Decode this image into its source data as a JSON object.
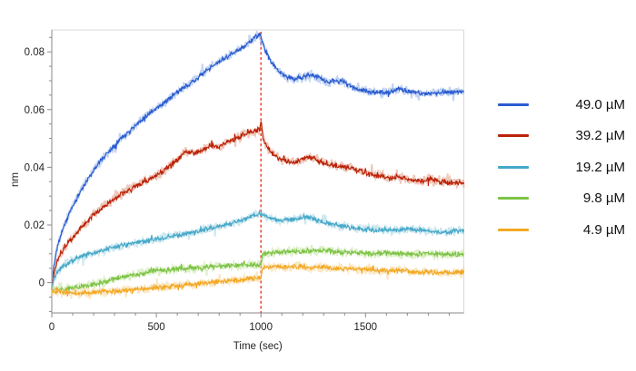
{
  "chart_data": {
    "type": "line",
    "title": "",
    "xlabel": "Time (sec)",
    "ylabel": "nm",
    "x_range": [
      0,
      1970
    ],
    "y_range": [
      -0.0105,
      0.0876
    ],
    "x_major_ticks": [
      0,
      500,
      1000,
      1500
    ],
    "x_tick_labels": [
      "0",
      "500",
      "1000",
      "1500"
    ],
    "x_minor_step": 100,
    "y_major_ticks": [
      0,
      0.02,
      0.04,
      0.06,
      0.08
    ],
    "y_tick_labels": [
      "0",
      "0.02",
      "0.04",
      "0.06",
      "0.08"
    ],
    "y_minor_step": 0.005,
    "grid": "off",
    "legend_position": "right-outside",
    "event_marker": {
      "x": 1000,
      "style": "dashed",
      "color": "#ee3524"
    },
    "style": {
      "axis_color": "#8a8a8a",
      "frame_color": "#d9d9d9",
      "text_color": "#1f1f1f"
    },
    "series": [
      {
        "label": "49.0 µM",
        "color": "#2a5cd1",
        "light": "#8fb0e8",
        "noise": 0.001,
        "seed": 11,
        "points": [
          [
            0,
            -0.002
          ],
          [
            10,
            0.006
          ],
          [
            25,
            0.012
          ],
          [
            50,
            0.018
          ],
          [
            90,
            0.025
          ],
          [
            140,
            0.032
          ],
          [
            200,
            0.039
          ],
          [
            260,
            0.0445
          ],
          [
            330,
            0.05
          ],
          [
            400,
            0.0545
          ],
          [
            470,
            0.059
          ],
          [
            540,
            0.0625
          ],
          [
            610,
            0.0665
          ],
          [
            680,
            0.07
          ],
          [
            750,
            0.074
          ],
          [
            820,
            0.0775
          ],
          [
            880,
            0.08
          ],
          [
            930,
            0.0825
          ],
          [
            970,
            0.085
          ],
          [
            995,
            0.086
          ],
          [
            1000,
            0.0855
          ],
          [
            1010,
            0.0825
          ],
          [
            1030,
            0.079
          ],
          [
            1060,
            0.0755
          ],
          [
            1090,
            0.073
          ],
          [
            1120,
            0.0715
          ],
          [
            1160,
            0.0705
          ],
          [
            1200,
            0.0712
          ],
          [
            1240,
            0.072
          ],
          [
            1280,
            0.071
          ],
          [
            1320,
            0.0695
          ],
          [
            1360,
            0.07
          ],
          [
            1400,
            0.0695
          ],
          [
            1440,
            0.0675
          ],
          [
            1480,
            0.067
          ],
          [
            1530,
            0.066
          ],
          [
            1600,
            0.0658
          ],
          [
            1660,
            0.0672
          ],
          [
            1720,
            0.066
          ],
          [
            1800,
            0.0655
          ],
          [
            1900,
            0.0662
          ],
          [
            1970,
            0.066
          ]
        ]
      },
      {
        "label": "39.2 µM",
        "color": "#bb2208",
        "light": "#e09a82",
        "noise": 0.0011,
        "seed": 23,
        "points": [
          [
            0,
            -0.002
          ],
          [
            10,
            0.003
          ],
          [
            25,
            0.007
          ],
          [
            50,
            0.011
          ],
          [
            90,
            0.015
          ],
          [
            140,
            0.019
          ],
          [
            200,
            0.0235
          ],
          [
            260,
            0.027
          ],
          [
            330,
            0.0305
          ],
          [
            400,
            0.0335
          ],
          [
            470,
            0.036
          ],
          [
            540,
            0.039
          ],
          [
            600,
            0.0425
          ],
          [
            640,
            0.0455
          ],
          [
            680,
            0.0445
          ],
          [
            720,
            0.046
          ],
          [
            760,
            0.0475
          ],
          [
            800,
            0.047
          ],
          [
            840,
            0.0485
          ],
          [
            880,
            0.05
          ],
          [
            920,
            0.0515
          ],
          [
            950,
            0.052
          ],
          [
            975,
            0.0525
          ],
          [
            993,
            0.053
          ],
          [
            1000,
            0.056
          ],
          [
            1012,
            0.0495
          ],
          [
            1035,
            0.0465
          ],
          [
            1060,
            0.0445
          ],
          [
            1090,
            0.0428
          ],
          [
            1120,
            0.042
          ],
          [
            1160,
            0.0418
          ],
          [
            1200,
            0.0428
          ],
          [
            1235,
            0.0438
          ],
          [
            1270,
            0.0425
          ],
          [
            1310,
            0.0412
          ],
          [
            1350,
            0.0408
          ],
          [
            1390,
            0.0402
          ],
          [
            1430,
            0.0398
          ],
          [
            1470,
            0.0388
          ],
          [
            1510,
            0.0378
          ],
          [
            1560,
            0.0372
          ],
          [
            1610,
            0.0362
          ],
          [
            1660,
            0.0368
          ],
          [
            1710,
            0.0358
          ],
          [
            1760,
            0.0352
          ],
          [
            1810,
            0.0358
          ],
          [
            1860,
            0.035
          ],
          [
            1910,
            0.0348
          ],
          [
            1970,
            0.0345
          ]
        ]
      },
      {
        "label": "19.2 µM",
        "color": "#45a8c8",
        "light": "#a6d6e4",
        "noise": 0.001,
        "seed": 37,
        "points": [
          [
            0,
            -0.002
          ],
          [
            10,
            0.001
          ],
          [
            25,
            0.0035
          ],
          [
            50,
            0.0055
          ],
          [
            90,
            0.0075
          ],
          [
            140,
            0.009
          ],
          [
            200,
            0.0105
          ],
          [
            260,
            0.0115
          ],
          [
            330,
            0.0128
          ],
          [
            400,
            0.0138
          ],
          [
            470,
            0.0148
          ],
          [
            540,
            0.0155
          ],
          [
            610,
            0.0165
          ],
          [
            680,
            0.0175
          ],
          [
            750,
            0.0188
          ],
          [
            820,
            0.0198
          ],
          [
            880,
            0.021
          ],
          [
            930,
            0.0222
          ],
          [
            970,
            0.0235
          ],
          [
            1000,
            0.0242
          ],
          [
            1020,
            0.0232
          ],
          [
            1050,
            0.0222
          ],
          [
            1090,
            0.0215
          ],
          [
            1130,
            0.0218
          ],
          [
            1170,
            0.0222
          ],
          [
            1210,
            0.0228
          ],
          [
            1250,
            0.0222
          ],
          [
            1290,
            0.0212
          ],
          [
            1330,
            0.0205
          ],
          [
            1370,
            0.0198
          ],
          [
            1410,
            0.0194
          ],
          [
            1450,
            0.019
          ],
          [
            1500,
            0.0186
          ],
          [
            1560,
            0.0182
          ],
          [
            1620,
            0.018
          ],
          [
            1680,
            0.0186
          ],
          [
            1740,
            0.0182
          ],
          [
            1800,
            0.018
          ],
          [
            1870,
            0.0176
          ],
          [
            1970,
            0.018
          ]
        ]
      },
      {
        "label": "9.8 µM",
        "color": "#7cc345",
        "light": "#c2e39c",
        "noise": 0.001,
        "seed": 51,
        "points": [
          [
            0,
            -0.0025
          ],
          [
            60,
            -0.0022
          ],
          [
            120,
            -0.0015
          ],
          [
            180,
            -0.0008
          ],
          [
            240,
            0.0002
          ],
          [
            300,
            0.0012
          ],
          [
            360,
            0.0022
          ],
          [
            420,
            0.0032
          ],
          [
            480,
            0.004
          ],
          [
            540,
            0.0044
          ],
          [
            600,
            0.0046
          ],
          [
            660,
            0.005
          ],
          [
            720,
            0.0052
          ],
          [
            780,
            0.0056
          ],
          [
            840,
            0.0058
          ],
          [
            900,
            0.006
          ],
          [
            960,
            0.0062
          ],
          [
            1000,
            0.0063
          ],
          [
            1008,
            0.01
          ],
          [
            1060,
            0.0103
          ],
          [
            1120,
            0.0106
          ],
          [
            1180,
            0.0108
          ],
          [
            1240,
            0.011
          ],
          [
            1300,
            0.0112
          ],
          [
            1360,
            0.0108
          ],
          [
            1420,
            0.0105
          ],
          [
            1480,
            0.0102
          ],
          [
            1540,
            0.01
          ],
          [
            1600,
            0.0103
          ],
          [
            1660,
            0.01
          ],
          [
            1720,
            0.0098
          ],
          [
            1800,
            0.01
          ],
          [
            1900,
            0.0098
          ],
          [
            1970,
            0.01
          ]
        ]
      },
      {
        "label": "4.9 µM",
        "color": "#f3a823",
        "light": "#f6d494",
        "noise": 0.001,
        "seed": 67,
        "points": [
          [
            0,
            -0.003
          ],
          [
            60,
            -0.0034
          ],
          [
            120,
            -0.0036
          ],
          [
            180,
            -0.0034
          ],
          [
            240,
            -0.0032
          ],
          [
            300,
            -0.003
          ],
          [
            360,
            -0.0026
          ],
          [
            420,
            -0.0022
          ],
          [
            480,
            -0.0018
          ],
          [
            540,
            -0.0014
          ],
          [
            600,
            -0.001
          ],
          [
            660,
            -0.0006
          ],
          [
            720,
            -0.0002
          ],
          [
            780,
            0.0002
          ],
          [
            840,
            0.0006
          ],
          [
            900,
            0.001
          ],
          [
            960,
            0.0014
          ],
          [
            1000,
            0.0016
          ],
          [
            1008,
            0.0052
          ],
          [
            1060,
            0.0056
          ],
          [
            1120,
            0.0054
          ],
          [
            1180,
            0.0056
          ],
          [
            1240,
            0.0052
          ],
          [
            1300,
            0.0054
          ],
          [
            1360,
            0.005
          ],
          [
            1420,
            0.0048
          ],
          [
            1480,
            0.0046
          ],
          [
            1540,
            0.0044
          ],
          [
            1600,
            0.004
          ],
          [
            1660,
            0.0042
          ],
          [
            1720,
            0.0038
          ],
          [
            1800,
            0.0036
          ],
          [
            1900,
            0.0034
          ],
          [
            1970,
            0.0036
          ]
        ]
      }
    ]
  }
}
